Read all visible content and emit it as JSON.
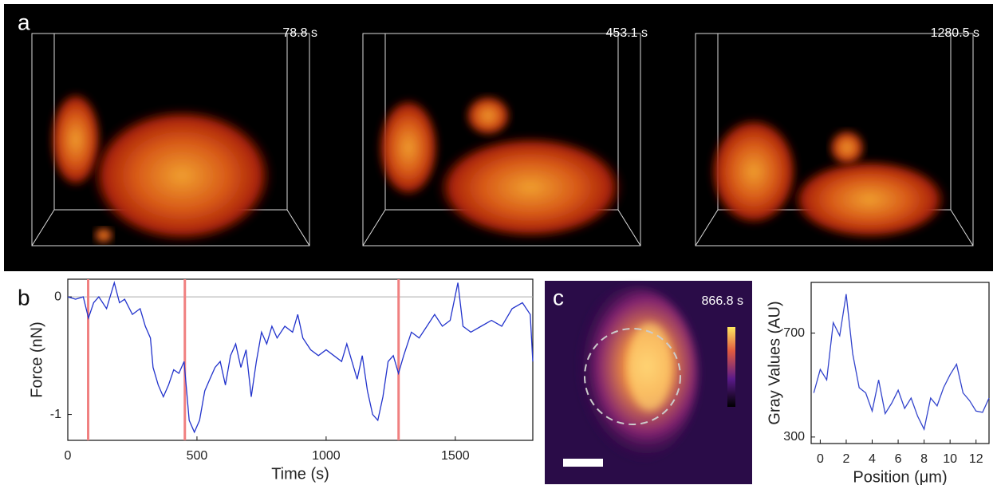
{
  "figure": {
    "panel_a": {
      "label": "a",
      "timestamps": [
        "78.8 s",
        "453.1 s",
        "1280.5 s"
      ]
    },
    "panel_c": {
      "label": "c",
      "timestamp": "866.8 s"
    }
  },
  "chart_data": [
    {
      "type": "line",
      "panel_label": "b",
      "xlabel": "Time (s)",
      "ylabel": "Force (nN)",
      "x": [
        0,
        30,
        60,
        80,
        100,
        120,
        150,
        180,
        200,
        220,
        250,
        280,
        300,
        320,
        330,
        350,
        370,
        390,
        410,
        430,
        450,
        470,
        490,
        510,
        530,
        550,
        570,
        590,
        610,
        630,
        650,
        670,
        690,
        710,
        730,
        750,
        770,
        790,
        810,
        840,
        870,
        890,
        910,
        940,
        970,
        1000,
        1030,
        1060,
        1080,
        1100,
        1120,
        1140,
        1160,
        1180,
        1200,
        1220,
        1240,
        1260,
        1280,
        1300,
        1330,
        1360,
        1390,
        1420,
        1450,
        1480,
        1510,
        1530,
        1560,
        1600,
        1640,
        1680,
        1720,
        1760,
        1790,
        1800
      ],
      "series": [
        {
          "color": "#2233cc",
          "values": [
            0,
            -0.02,
            0,
            -0.18,
            -0.05,
            0,
            -0.1,
            0.12,
            -0.05,
            -0.02,
            -0.15,
            -0.1,
            -0.25,
            -0.35,
            -0.6,
            -0.75,
            -0.85,
            -0.75,
            -0.62,
            -0.65,
            -0.55,
            -1.05,
            -1.15,
            -1.05,
            -0.8,
            -0.7,
            -0.6,
            -0.55,
            -0.75,
            -0.5,
            -0.4,
            -0.6,
            -0.45,
            -0.85,
            -0.55,
            -0.3,
            -0.4,
            -0.25,
            -0.35,
            -0.25,
            -0.3,
            -0.15,
            -0.35,
            -0.45,
            -0.5,
            -0.45,
            -0.5,
            -0.55,
            -0.4,
            -0.55,
            -0.7,
            -0.5,
            -0.8,
            -1.0,
            -1.05,
            -0.85,
            -0.55,
            -0.5,
            -0.65,
            -0.5,
            -0.3,
            -0.35,
            -0.25,
            -0.15,
            -0.25,
            -0.2,
            0.12,
            -0.25,
            -0.3,
            -0.25,
            -0.2,
            -0.25,
            -0.1,
            -0.05,
            -0.15,
            -0.55
          ]
        }
      ],
      "xlim": [
        0,
        1800
      ],
      "xticks": [
        0,
        500,
        1000,
        1500
      ],
      "ylim": [
        -1.22,
        0.15
      ],
      "yticks": [
        0,
        -1
      ],
      "zero_line": true,
      "markers": [
        78.8,
        453.1,
        1280.5
      ],
      "marker_color": "#f08080"
    },
    {
      "type": "line",
      "xlabel": "Position (μm)",
      "ylabel": "Gray Values (AU)",
      "x": [
        -0.5,
        0,
        0.5,
        1,
        1.5,
        2,
        2.5,
        3,
        3.5,
        4,
        4.5,
        5,
        5.5,
        6,
        6.5,
        7,
        7.5,
        8,
        8.5,
        9,
        9.5,
        10,
        10.5,
        11,
        11.5,
        12,
        12.5,
        13
      ],
      "series": [
        {
          "color": "#3344cc",
          "values": [
            470,
            560,
            520,
            740,
            690,
            850,
            620,
            490,
            470,
            400,
            520,
            390,
            430,
            480,
            410,
            450,
            380,
            330,
            450,
            420,
            490,
            540,
            580,
            470,
            440,
            400,
            395,
            450
          ]
        }
      ],
      "xlim": [
        -0.7,
        13
      ],
      "xticks": [
        0,
        2,
        4,
        6,
        8,
        10,
        12
      ],
      "ylim": [
        275,
        895
      ],
      "yticks": [
        300,
        700
      ]
    }
  ]
}
